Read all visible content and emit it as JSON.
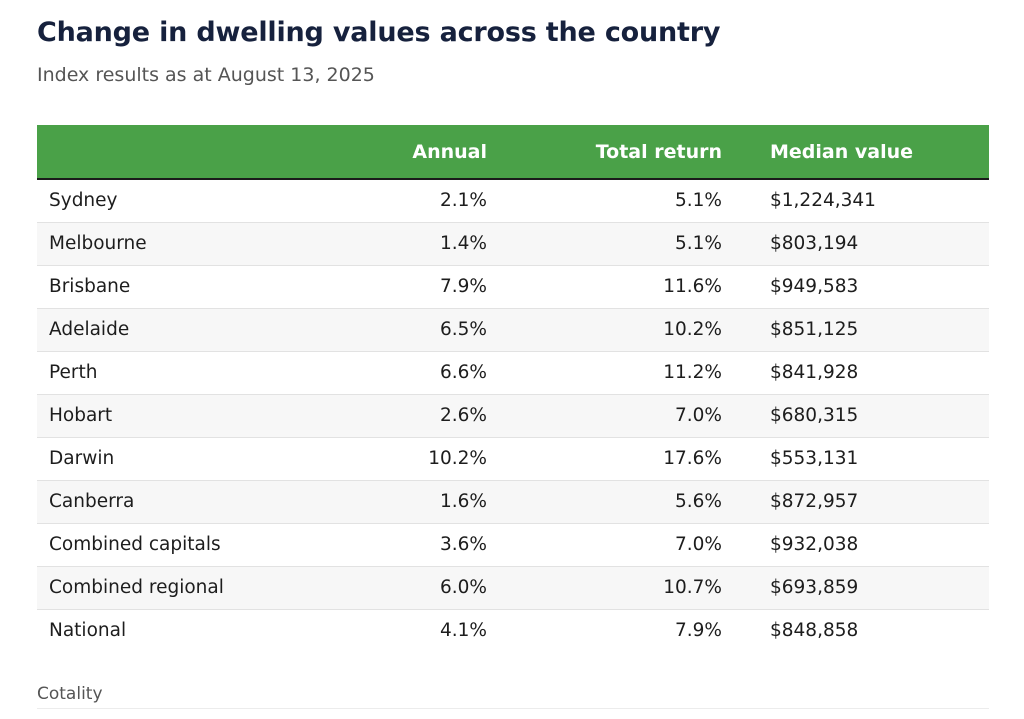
{
  "title": "Change in dwelling values across the country",
  "subtitle": "Index results as at August 13, 2025",
  "source": "Cotality",
  "colors": {
    "header_bg": "#4aa148",
    "header_text": "#ffffff",
    "title": "#16213d"
  },
  "chart_data": {
    "type": "table",
    "title": "Change in dwelling values across the country",
    "subtitle": "Index results as at August 13, 2025",
    "columns": [
      "",
      "Annual",
      "Total return",
      "Median value"
    ],
    "rows": [
      {
        "name": "Sydney",
        "annual": "2.1%",
        "total_return": "5.1%",
        "median_value": "$1,224,341"
      },
      {
        "name": "Melbourne",
        "annual": "1.4%",
        "total_return": "5.1%",
        "median_value": "$803,194"
      },
      {
        "name": "Brisbane",
        "annual": "7.9%",
        "total_return": "11.6%",
        "median_value": "$949,583"
      },
      {
        "name": "Adelaide",
        "annual": "6.5%",
        "total_return": "10.2%",
        "median_value": "$851,125"
      },
      {
        "name": "Perth",
        "annual": "6.6%",
        "total_return": "11.2%",
        "median_value": "$841,928"
      },
      {
        "name": "Hobart",
        "annual": "2.6%",
        "total_return": "7.0%",
        "median_value": "$680,315"
      },
      {
        "name": "Darwin",
        "annual": "10.2%",
        "total_return": "17.6%",
        "median_value": "$553,131"
      },
      {
        "name": "Canberra",
        "annual": "1.6%",
        "total_return": "5.6%",
        "median_value": "$872,957"
      },
      {
        "name": "Combined capitals",
        "annual": "3.6%",
        "total_return": "7.0%",
        "median_value": "$932,038"
      },
      {
        "name": "Combined regional",
        "annual": "6.0%",
        "total_return": "10.7%",
        "median_value": "$693,859"
      },
      {
        "name": "National",
        "annual": "4.1%",
        "total_return": "7.9%",
        "median_value": "$848,858"
      }
    ]
  }
}
